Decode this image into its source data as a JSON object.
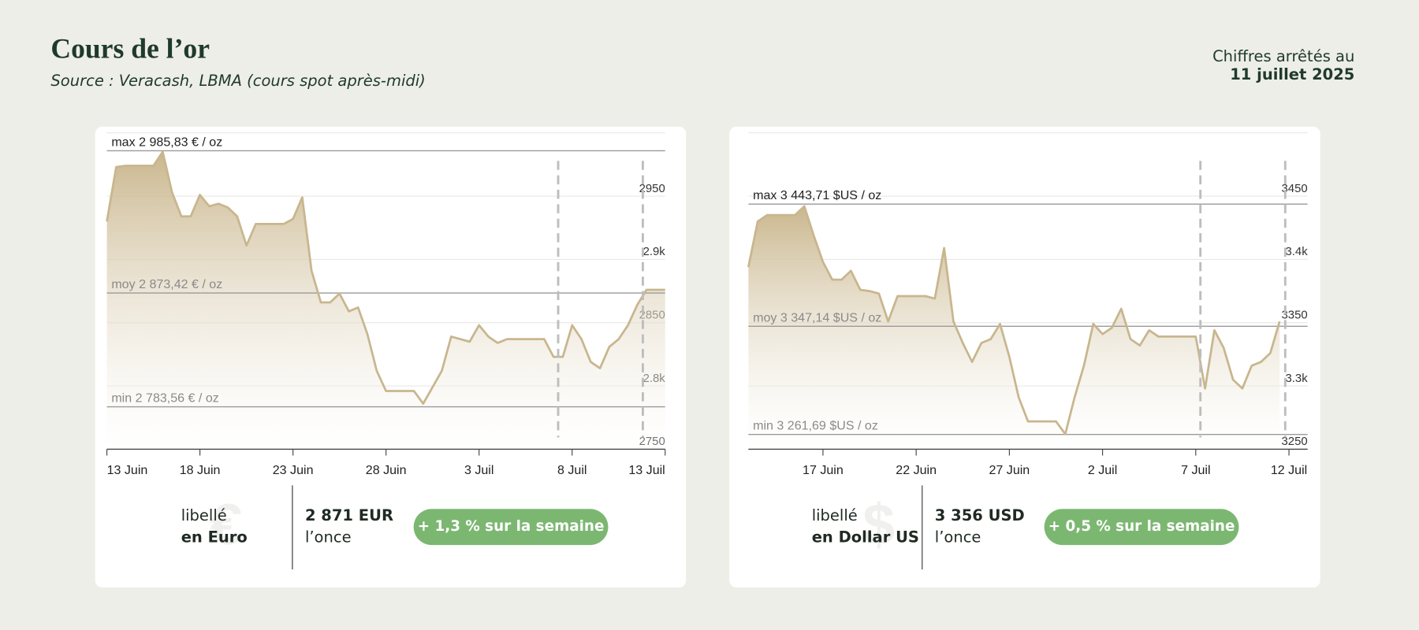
{
  "header": {
    "title": "Cours de l’or",
    "subtitle": "Source : Veracash, LBMA (cours spot après-midi)",
    "date_label": "Chiffres arrêtés au",
    "date": "11 juillet 2025"
  },
  "chart_data": [
    {
      "type": "area",
      "color": "#c8b68e",
      "categories": [
        "13 Juin",
        null,
        null,
        null,
        null,
        null,
        null,
        null,
        null,
        null,
        "18 Juin",
        null,
        null,
        null,
        null,
        null,
        null,
        null,
        null,
        null,
        "23 Juin",
        null,
        null,
        null,
        null,
        null,
        null,
        null,
        null,
        null,
        "28 Juin",
        null,
        null,
        null,
        null,
        null,
        null,
        null,
        null,
        null,
        "3 Juil",
        null,
        null,
        null,
        null,
        null,
        null,
        null,
        null,
        null,
        "8 Juil",
        null,
        null,
        null,
        null,
        null,
        null,
        null,
        null,
        null,
        "13 Juil"
      ],
      "values": [
        2930,
        2973,
        2974,
        2974,
        2974,
        2974,
        2985,
        2953,
        2934,
        2934,
        2951,
        2942,
        2944,
        2941,
        2934,
        2911,
        2928,
        2928,
        2928,
        2928,
        2932,
        2949,
        2891,
        2866,
        2866,
        2873,
        2859,
        2862,
        2841,
        2812,
        2796,
        2796,
        2796,
        2796,
        2786,
        2799,
        2812,
        2839,
        2837,
        2835,
        2848,
        2839,
        2834,
        2837,
        2837,
        2837,
        2837,
        2837,
        2823,
        2823,
        2848,
        2837,
        2819,
        2814,
        2831,
        2837,
        2848,
        2864,
        2876,
        2876,
        2876
      ],
      "ylim": [
        2750,
        3000
      ],
      "yticks": [
        2750,
        {
          "value": 2800,
          "label": "2.8k"
        },
        2850,
        {
          "value": 2900,
          "label": "2.9k"
        },
        2950
      ],
      "grid": true,
      "annotations": [
        {
          "label": "max 2 985,83 € / oz",
          "value": 2985.83
        },
        {
          "label": "moy 2 873,42 € / oz",
          "value": 2873.42
        },
        {
          "label": "min 2 783,56 € / oz",
          "value": 2783.56
        }
      ]
    },
    {
      "type": "area",
      "color": "#c8b68e",
      "categories": [
        null,
        null,
        null,
        null,
        null,
        null,
        null,
        null,
        "17 Juin",
        null,
        null,
        null,
        null,
        null,
        null,
        null,
        null,
        null,
        "22 Juin",
        null,
        null,
        null,
        null,
        null,
        null,
        null,
        null,
        null,
        "27 Juin",
        null,
        null,
        null,
        null,
        null,
        null,
        null,
        null,
        null,
        "2 Juil",
        null,
        null,
        null,
        null,
        null,
        null,
        null,
        null,
        null,
        "7 Juil",
        null,
        null,
        null,
        null,
        null,
        null,
        null,
        null,
        null,
        "12 Juil",
        null,
        null
      ],
      "values": [
        3394,
        3430,
        3435,
        3435,
        3435,
        3435,
        3442,
        3419,
        3398,
        3384,
        3384,
        3391,
        3376,
        3375,
        3373,
        3351,
        3371,
        3371,
        3371,
        3371,
        3369,
        3409,
        3351,
        3334,
        3319,
        3334,
        3337,
        3349,
        3323,
        3291,
        3272,
        3272,
        3272,
        3272,
        3262,
        3291,
        3316,
        3349,
        3341,
        3346,
        3361,
        3337,
        3332,
        3344,
        3339,
        3339,
        3339,
        3339,
        3339,
        3298,
        3344,
        3330,
        3305,
        3298,
        3316,
        3319,
        3326,
        3351,
        null,
        null,
        null
      ],
      "ylim": [
        3250,
        3500
      ],
      "yticks": [
        3250,
        {
          "value": 3300,
          "label": "3.3k"
        },
        3350,
        {
          "value": 3400,
          "label": "3.4k"
        },
        3450
      ],
      "grid": true,
      "annotations": [
        {
          "label": "max 3 443,71 $US / oz",
          "value": 3443.71
        },
        {
          "label": "moy 3 347,14 $US / oz",
          "value": 3347.14
        },
        {
          "label": "min 3 261,69 $US / oz",
          "value": 3261.69
        }
      ]
    }
  ],
  "cards": [
    {
      "label": "libellé",
      "currency": "en Euro",
      "symbol": "€",
      "price": "2 871 EUR",
      "unit": "l’once",
      "change": "+ 1,3 % sur la semaine"
    },
    {
      "label": "libellé",
      "currency": "en Dollar US",
      "symbol": "$",
      "price": "3 356 USD",
      "unit": "l’once",
      "change": "+ 0,5 % sur la semaine"
    }
  ]
}
